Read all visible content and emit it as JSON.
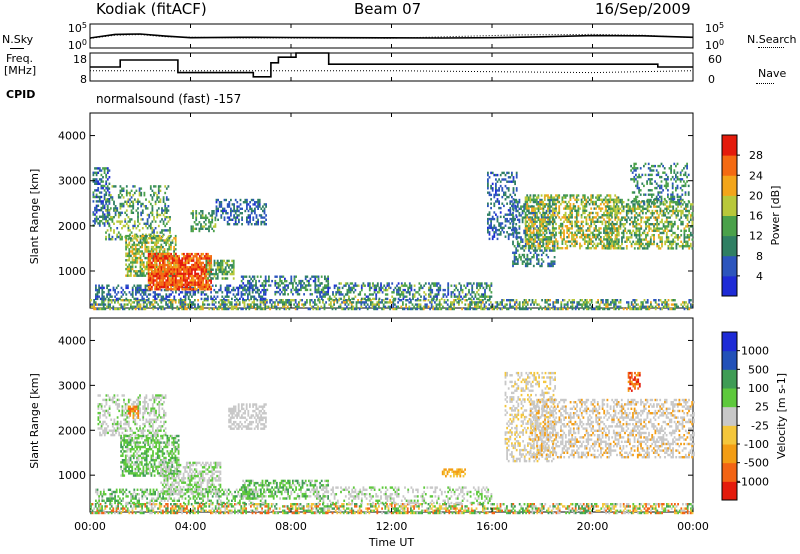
{
  "header": {
    "station": "Kodiak (fitACF)",
    "beam": "Beam 07",
    "date": "16/Sep/2009"
  },
  "left_labels": {
    "nsky": "N.Sky",
    "freq_line1": "Freq.",
    "freq_line2": "[MHz]",
    "cpid": "CPID"
  },
  "right_labels": {
    "nsearch": "N.Search",
    "nave": "Nave"
  },
  "mode_text": "normalsound (fast) -157",
  "colors": {
    "power": [
      "#1e2bd6",
      "#2c55bd",
      "#2f7f63",
      "#4aa14a",
      "#b8c83a",
      "#f3a51a",
      "#f46a12",
      "#e41b0c"
    ],
    "velocity": [
      "#e41b0c",
      "#f36414",
      "#f39d14",
      "#f4c63b",
      "#c8c8c8",
      "#5ec93c",
      "#3f9c55",
      "#2251b8",
      "#1e2bd6"
    ],
    "noise": "#000000"
  },
  "chart_data": [
    {
      "type": "line",
      "name": "noise",
      "title": "",
      "x_ticks": [
        "00:00",
        "04:00",
        "08:00",
        "12:00",
        "16:00",
        "20:00",
        "00:00"
      ],
      "left_ticks": [
        "10^5",
        "10^0"
      ],
      "right_ticks": [
        "10^5",
        "10^0"
      ],
      "series": [
        {
          "name": "N.Sky",
          "x": [
            0,
            1,
            2,
            3,
            4,
            6,
            8,
            10,
            12,
            14,
            16,
            18,
            20,
            22,
            24
          ],
          "y": [
            100,
            800,
            1000,
            300,
            120,
            150,
            130,
            120,
            110,
            100,
            120,
            200,
            400,
            350,
            150
          ]
        },
        {
          "name": "N.Search",
          "x": [
            0,
            1,
            2,
            3,
            6,
            12,
            17,
            20,
            22,
            24
          ],
          "y": [
            80,
            500,
            700,
            200,
            100,
            90,
            600,
            800,
            500,
            120
          ]
        }
      ]
    },
    {
      "type": "line",
      "name": "frequency",
      "left_ticks": [
        "18",
        "8"
      ],
      "right_ticks": [
        "60",
        "0"
      ],
      "series": [
        {
          "name": "Freq.",
          "x": [
            0,
            1.2,
            1.2,
            3.5,
            3.5,
            6.5,
            6.5,
            7.2,
            7.2,
            7.5,
            7.5,
            8.2,
            8.2,
            9.5,
            9.5,
            22.6,
            22.6,
            24
          ],
          "y": [
            13,
            13,
            15.5,
            15.5,
            11,
            11,
            9.5,
            9.5,
            14.5,
            14.5,
            16.5,
            16.5,
            18,
            18,
            14,
            14,
            13,
            13
          ]
        },
        {
          "name": "Nave",
          "x": [
            0,
            4,
            8,
            12,
            16,
            20,
            24
          ],
          "y": [
            22,
            22,
            22,
            22,
            20,
            18,
            22
          ]
        }
      ]
    },
    {
      "type": "heatmap",
      "name": "power",
      "ylabel": "Slant Range [km]",
      "yticks": [
        "1000",
        "2000",
        "3000",
        "4000"
      ],
      "ylim": [
        180,
        4500
      ],
      "xlim": [
        0,
        24
      ],
      "colorbar_label": "Power [dB]",
      "colorbar_ticks": [
        "4",
        "8",
        "12",
        "16",
        "20",
        "24",
        "28"
      ],
      "colorbar_range": [
        0,
        32
      ],
      "regions": [
        {
          "t0": 0.0,
          "t1": 24.0,
          "r0": 180,
          "r1": 380,
          "v0": 4,
          "v1": 22,
          "d": 0.55
        },
        {
          "t0": 0.2,
          "t1": 7.0,
          "r0": 380,
          "r1": 700,
          "v0": 2,
          "v1": 12,
          "d": 0.45
        },
        {
          "t0": 0.1,
          "t1": 0.8,
          "r0": 2000,
          "r1": 3300,
          "v0": 2,
          "v1": 14,
          "d": 0.5
        },
        {
          "t0": 0.6,
          "t1": 3.2,
          "r0": 1700,
          "r1": 2900,
          "v0": 6,
          "v1": 20,
          "d": 0.35
        },
        {
          "t0": 1.4,
          "t1": 3.4,
          "r0": 900,
          "r1": 1800,
          "v0": 10,
          "v1": 22,
          "d": 0.6
        },
        {
          "t0": 2.3,
          "t1": 4.8,
          "r0": 600,
          "r1": 1400,
          "v0": 22,
          "v1": 31,
          "d": 0.85
        },
        {
          "t0": 4.0,
          "t1": 5.0,
          "r0": 1900,
          "r1": 2350,
          "v0": 8,
          "v1": 18,
          "d": 0.5
        },
        {
          "t0": 4.6,
          "t1": 5.7,
          "r0": 850,
          "r1": 1250,
          "v0": 8,
          "v1": 20,
          "d": 0.6
        },
        {
          "t0": 5.0,
          "t1": 7.0,
          "r0": 2050,
          "r1": 2600,
          "v0": 3,
          "v1": 12,
          "d": 0.45
        },
        {
          "t0": 6.0,
          "t1": 9.5,
          "r0": 500,
          "r1": 900,
          "v0": 3,
          "v1": 16,
          "d": 0.45
        },
        {
          "t0": 9.0,
          "t1": 16.0,
          "r0": 380,
          "r1": 750,
          "v0": 3,
          "v1": 18,
          "d": 0.4
        },
        {
          "t0": 15.8,
          "t1": 17.0,
          "r0": 1700,
          "r1": 3200,
          "v0": 3,
          "v1": 12,
          "d": 0.35
        },
        {
          "t0": 16.8,
          "t1": 18.5,
          "r0": 1100,
          "r1": 2600,
          "v0": 4,
          "v1": 14,
          "d": 0.4
        },
        {
          "t0": 17.3,
          "t1": 21.0,
          "r0": 1500,
          "r1": 2700,
          "v0": 10,
          "v1": 24,
          "d": 0.55
        },
        {
          "t0": 20.5,
          "t1": 24.0,
          "r0": 1500,
          "r1": 2600,
          "v0": 8,
          "v1": 22,
          "d": 0.5
        },
        {
          "t0": 21.5,
          "t1": 23.8,
          "r0": 2500,
          "r1": 3400,
          "v0": 4,
          "v1": 16,
          "d": 0.3
        }
      ]
    },
    {
      "type": "heatmap",
      "name": "velocity",
      "ylabel": "Slant Range [km]",
      "yticks": [
        "1000",
        "2000",
        "3000",
        "4000"
      ],
      "ylim": [
        180,
        4500
      ],
      "xlim": [
        0,
        24
      ],
      "xticks": [
        "00:00",
        "04:00",
        "08:00",
        "12:00",
        "16:00",
        "20:00",
        "00:00"
      ],
      "xlabel": "Time UT",
      "colorbar_label": "Velocity [m s-1]",
      "colorbar_ticks": [
        "-1000",
        "-500",
        "-100",
        "-25",
        "25",
        "100",
        "500",
        "1000"
      ],
      "regions": [
        {
          "t0": 0.0,
          "t1": 24.0,
          "r0": 180,
          "r1": 380,
          "c": [
            1,
            3,
            4,
            5,
            6
          ],
          "d": 0.55
        },
        {
          "t0": 0.2,
          "t1": 7.0,
          "r0": 380,
          "r1": 700,
          "c": [
            4,
            5,
            5,
            6
          ],
          "d": 0.45
        },
        {
          "t0": 0.3,
          "t1": 3.0,
          "r0": 1900,
          "r1": 2800,
          "c": [
            4,
            4,
            5
          ],
          "d": 0.45
        },
        {
          "t0": 1.2,
          "t1": 3.5,
          "r0": 1000,
          "r1": 1900,
          "c": [
            5,
            5,
            4,
            6
          ],
          "d": 0.6
        },
        {
          "t0": 2.8,
          "t1": 5.2,
          "r0": 600,
          "r1": 1300,
          "c": [
            4,
            5,
            4
          ],
          "d": 0.6
        },
        {
          "t0": 6.0,
          "t1": 9.5,
          "r0": 500,
          "r1": 900,
          "c": [
            5,
            5,
            6,
            4
          ],
          "d": 0.5
        },
        {
          "t0": 9.0,
          "t1": 16.0,
          "r0": 380,
          "r1": 750,
          "c": [
            4,
            4,
            5
          ],
          "d": 0.35
        },
        {
          "t0": 5.5,
          "t1": 7.0,
          "r0": 2050,
          "r1": 2600,
          "c": [
            4
          ],
          "d": 0.5
        },
        {
          "t0": 16.5,
          "t1": 18.5,
          "r0": 1300,
          "r1": 3300,
          "c": [
            4,
            4,
            3
          ],
          "d": 0.35
        },
        {
          "t0": 17.5,
          "t1": 24.0,
          "r0": 1400,
          "r1": 2700,
          "c": [
            4,
            4,
            4,
            2
          ],
          "d": 0.45
        },
        {
          "t0": 21.4,
          "t1": 21.9,
          "r0": 2900,
          "r1": 3300,
          "c": [
            0,
            1,
            2
          ],
          "d": 0.6
        },
        {
          "t0": 1.5,
          "t1": 1.9,
          "r0": 2300,
          "r1": 2550,
          "c": [
            1,
            2
          ],
          "d": 0.6
        },
        {
          "t0": 14.0,
          "t1": 14.9,
          "r0": 1000,
          "r1": 1150,
          "c": [
            2,
            3
          ],
          "d": 0.6
        }
      ]
    }
  ]
}
